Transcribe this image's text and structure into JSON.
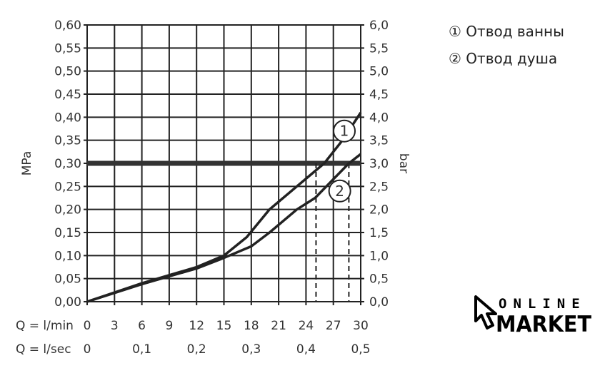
{
  "chart_data": {
    "type": "line",
    "ylabel_left": "MPa",
    "ylabel_right": "bar",
    "xlabel_min": "Q = l/min",
    "xlabel_sec": "Q = l/sec",
    "xlim": [
      0,
      30
    ],
    "ylim": [
      0,
      0.6
    ],
    "grid": true,
    "x_ticks_min": [
      "0",
      "3",
      "6",
      "9",
      "12",
      "15",
      "18",
      "21",
      "24",
      "27",
      "30"
    ],
    "x_ticks_sec": [
      {
        "v": 0,
        "label": "0"
      },
      {
        "v": 6,
        "label": "0,1"
      },
      {
        "v": 12,
        "label": "0,2"
      },
      {
        "v": 18,
        "label": "0,3"
      },
      {
        "v": 24,
        "label": "0,4"
      },
      {
        "v": 30,
        "label": "0,5"
      }
    ],
    "y_ticks_left": [
      "0,00",
      "0,05",
      "0,10",
      "0,15",
      "0,20",
      "0,25",
      "0,30",
      "0,35",
      "0,40",
      "0,45",
      "0,50",
      "0,55",
      "0,60"
    ],
    "y_ticks_right": [
      "0,0",
      "0,5",
      "1,0",
      "1,5",
      "2,0",
      "2,5",
      "3,0",
      "3,5",
      "4,0",
      "4,5",
      "5,0",
      "5,5",
      "6,0"
    ],
    "reference_line": 0.3,
    "series": [
      {
        "name": "1",
        "x": [
          0,
          6,
          12,
          15,
          17.5,
          20,
          23,
          26,
          28,
          30
        ],
        "y": [
          0,
          0.04,
          0.075,
          0.1,
          0.14,
          0.2,
          0.25,
          0.3,
          0.35,
          0.41
        ],
        "marker_x": 28.2,
        "marker_y": 0.37
      },
      {
        "name": "2",
        "x": [
          0,
          6,
          12,
          15,
          18,
          20,
          23,
          25,
          28.7,
          30
        ],
        "y": [
          0,
          0.038,
          0.072,
          0.095,
          0.12,
          0.15,
          0.2,
          0.225,
          0.3,
          0.32
        ],
        "marker_x": 27.7,
        "marker_y": 0.24
      }
    ],
    "drop_lines_x": [
      25.1,
      28.7
    ]
  },
  "legend": [
    {
      "symbol": "①",
      "label": "Отвод ванны"
    },
    {
      "symbol": "②",
      "label": "Отвод душа"
    }
  ],
  "logo": {
    "line1": "ONLINE",
    "line2": "MARKET"
  }
}
